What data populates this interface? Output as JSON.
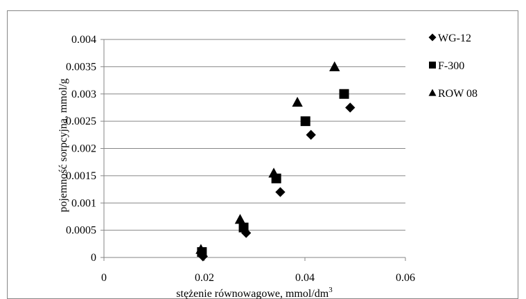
{
  "chart_data": {
    "type": "scatter",
    "title": "",
    "xlabel": "stężenie równowagowe, mmol/dm",
    "xlabel_sup": "3",
    "ylabel": "pojemność sorpcyjna, mmol/g",
    "xlim": [
      0,
      0.06
    ],
    "ylim": [
      0,
      0.004
    ],
    "x_ticks": [
      0,
      0.02,
      0.04,
      0.06
    ],
    "x_tick_labels": [
      "0",
      "0.02",
      "0.04",
      "0.06"
    ],
    "y_ticks": [
      0,
      0.0005,
      0.001,
      0.0015,
      0.002,
      0.0025,
      0.003,
      0.0035,
      0.004
    ],
    "y_tick_labels": [
      "0",
      "0.0005",
      "0.001",
      "0.0015",
      "0.002",
      "0.0025",
      "0.003",
      "0.0035",
      "0.004"
    ],
    "grid": "horizontal",
    "legend_position": "right",
    "series": [
      {
        "name": "WG-12",
        "marker": "diamond",
        "color": "#000000",
        "points": [
          [
            0.0197,
            2e-05
          ],
          [
            0.0283,
            0.00045
          ],
          [
            0.0351,
            0.0012
          ],
          [
            0.0412,
            0.00225
          ],
          [
            0.049,
            0.00275
          ]
        ]
      },
      {
        "name": "F-300",
        "marker": "square",
        "color": "#000000",
        "points": [
          [
            0.0195,
            0.0001
          ],
          [
            0.0278,
            0.00055
          ],
          [
            0.0343,
            0.00145
          ],
          [
            0.0401,
            0.0025
          ],
          [
            0.0478,
            0.003
          ]
        ]
      },
      {
        "name": "ROW 08",
        "marker": "triangle",
        "color": "#000000",
        "points": [
          [
            0.0193,
            0.00015
          ],
          [
            0.0271,
            0.0007
          ],
          [
            0.0338,
            0.00155
          ],
          [
            0.0385,
            0.00285
          ],
          [
            0.0459,
            0.0035
          ]
        ]
      }
    ]
  }
}
